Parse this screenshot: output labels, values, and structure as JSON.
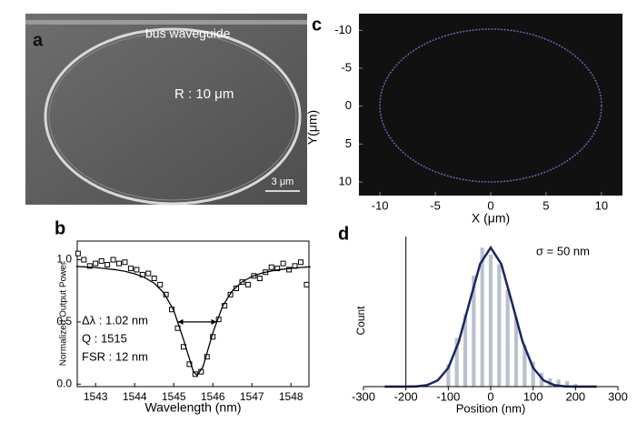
{
  "panel_a": {
    "label": "a",
    "waveguide_label": "bus waveguide",
    "radius_label": "R : 10 μm",
    "scale_label": "3 μm"
  },
  "panel_c": {
    "label": "c",
    "xlabel": "X (μm)",
    "ylabel": "Y(μm)",
    "xlim": [
      -11.9,
      11.9
    ],
    "xticks": [
      -10,
      -5,
      0,
      5,
      10
    ],
    "ylim": [
      -12.2,
      11.8
    ],
    "yticks": [
      -10,
      -5,
      0,
      5,
      10
    ],
    "y_inverted": true
  },
  "chart_data": [
    {
      "type": "scatter",
      "label": "b",
      "xlabel": "Wavelength (nm)",
      "ylabel": "Normalized Output Power",
      "xlim": [
        1542.53,
        1548.46
      ],
      "xticks": [
        1543,
        1544,
        1545,
        1546,
        1547,
        1548
      ],
      "ylim": [
        -0.02,
        1.15
      ],
      "yticks": [
        {
          "value": 0,
          "label": "0.0"
        },
        {
          "value": 0.5,
          "label": "0.5"
        },
        {
          "value": 1,
          "label": "1.0"
        }
      ],
      "annotations": [
        "Δλ : 1.02 nm",
        "Q : 1515",
        "FSR : 12 nm"
      ],
      "series": [
        {
          "kind": "points",
          "color": "#000000",
          "x": [
            1542.55,
            1542.7,
            1542.85,
            1543.0,
            1543.15,
            1543.3,
            1543.45,
            1543.6,
            1543.75,
            1543.9,
            1544.05,
            1544.2,
            1544.35,
            1544.5,
            1544.65,
            1544.8,
            1544.95,
            1545.1,
            1545.25,
            1545.4,
            1545.55,
            1545.7,
            1545.85,
            1546.0,
            1546.15,
            1546.3,
            1546.45,
            1546.6,
            1546.75,
            1546.9,
            1547.05,
            1547.2,
            1547.35,
            1547.5,
            1547.65,
            1547.8,
            1547.95,
            1548.1,
            1548.25,
            1548.4
          ],
          "values": [
            1.05,
            1.0,
            0.95,
            0.97,
            0.99,
            0.96,
            1.0,
            0.97,
            0.98,
            0.93,
            0.92,
            0.88,
            0.89,
            0.85,
            0.8,
            0.72,
            0.6,
            0.45,
            0.3,
            0.16,
            0.08,
            0.1,
            0.22,
            0.38,
            0.52,
            0.63,
            0.72,
            0.77,
            0.82,
            0.8,
            0.87,
            0.85,
            0.9,
            0.94,
            0.93,
            0.97,
            0.92,
            0.95,
            0.98,
            0.8
          ]
        },
        {
          "kind": "line",
          "color": "#000000",
          "x": [
            1542.5,
            1542.75,
            1543.0,
            1543.25,
            1543.5,
            1543.75,
            1544.0,
            1544.25,
            1544.5,
            1544.75,
            1545.0,
            1545.25,
            1545.5,
            1545.6,
            1545.75,
            1546.0,
            1546.25,
            1546.5,
            1546.75,
            1547.0,
            1547.25,
            1547.5,
            1547.75,
            1548.0,
            1548.25,
            1548.5
          ],
          "values": [
            0.946,
            0.942,
            0.937,
            0.929,
            0.92,
            0.907,
            0.887,
            0.858,
            0.811,
            0.732,
            0.592,
            0.358,
            0.103,
            0.07,
            0.141,
            0.413,
            0.627,
            0.751,
            0.822,
            0.865,
            0.892,
            0.91,
            0.922,
            0.931,
            0.938,
            0.943
          ]
        }
      ]
    },
    {
      "type": "histogram",
      "label": "d",
      "xlabel": "Position (nm)",
      "ylabel": "Count",
      "annotation": "σ = 50 nm",
      "xlim": [
        -300,
        300
      ],
      "xticks": [
        -300,
        -200,
        -100,
        0,
        100,
        200,
        300
      ],
      "ylim": [
        0,
        108
      ],
      "bins": [
        -110,
        -90,
        -70,
        -50,
        -30,
        -10,
        10,
        30,
        50,
        70,
        90,
        110,
        130,
        150,
        170,
        190,
        210
      ],
      "counts": [
        16,
        35,
        52,
        80,
        100,
        95,
        88,
        70,
        50,
        30,
        18,
        10,
        6,
        5,
        4,
        2
      ],
      "bar_color": "#b8c2cc",
      "fit": {
        "color": "#1a2466",
        "x": [
          -250,
          -225,
          -200,
          -175,
          -150,
          -125,
          -100,
          -75,
          -50,
          -25,
          0,
          25,
          50,
          75,
          100,
          125,
          150,
          175,
          200,
          225,
          250
        ],
        "values": [
          0,
          0,
          0,
          0.2,
          1.1,
          4.4,
          13.5,
          32.5,
          60.7,
          88.2,
          100,
          88.2,
          60.7,
          32.5,
          13.5,
          4.4,
          1.1,
          0.2,
          0,
          0,
          0
        ]
      }
    }
  ]
}
